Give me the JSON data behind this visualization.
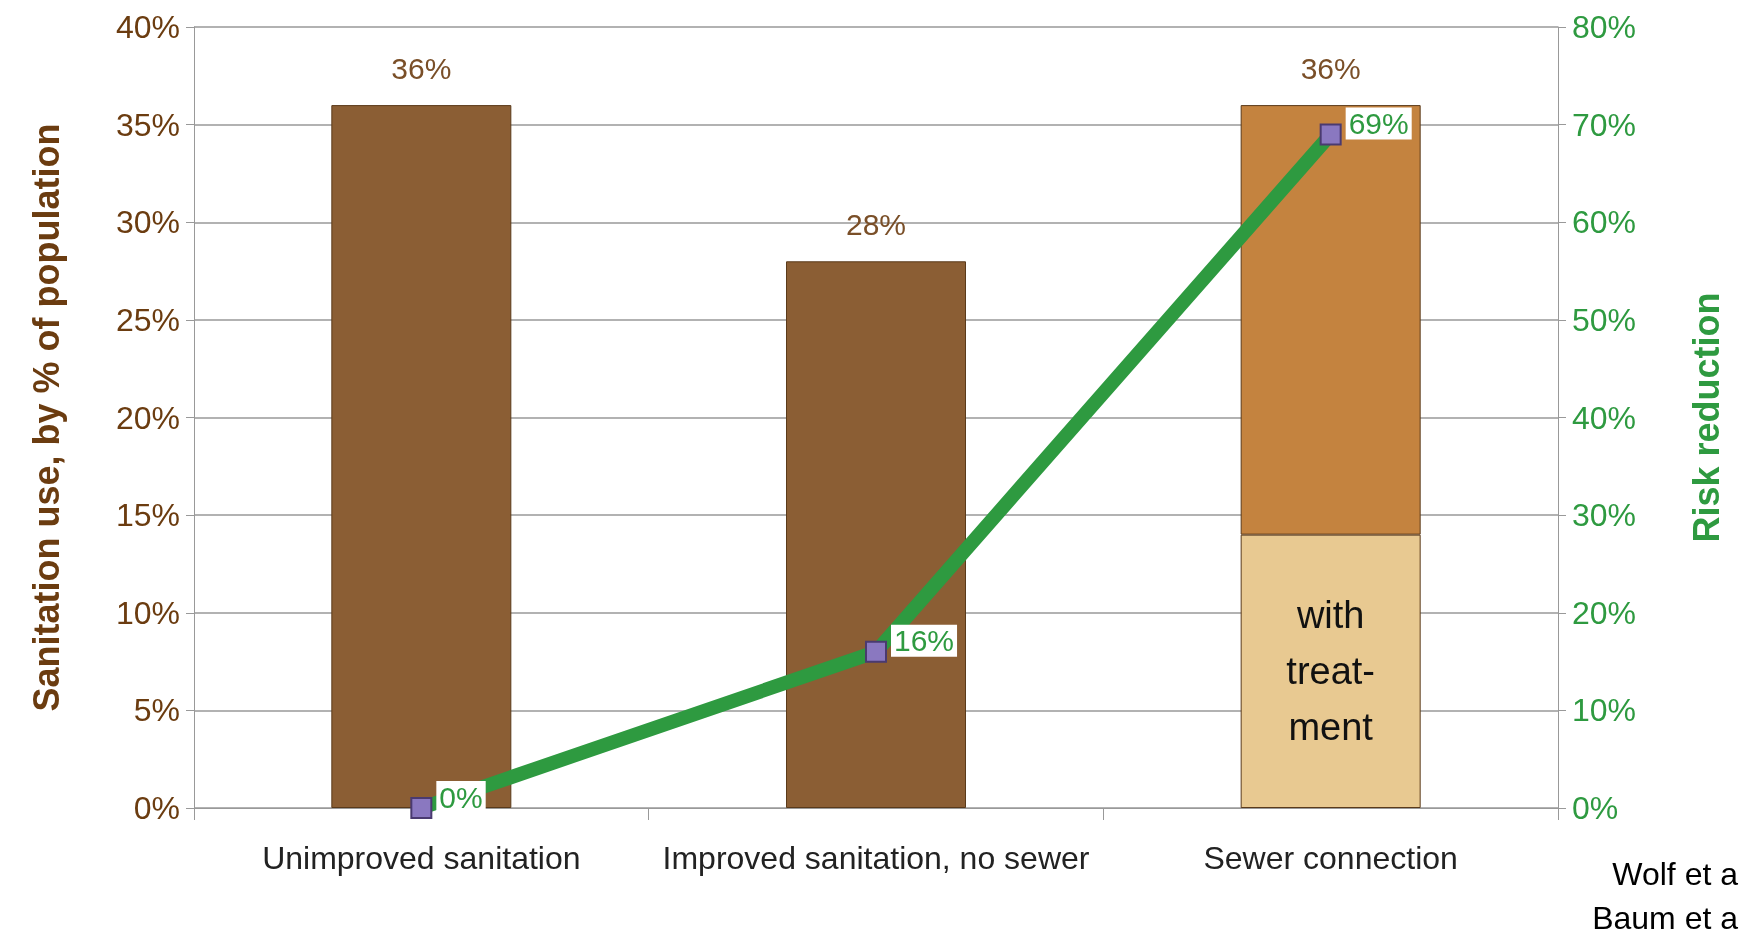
{
  "chart_data": {
    "type": "bar",
    "stacked": true,
    "categories": [
      "Unimproved sanitation",
      "Improved sanitation, no sewer",
      "Sewer connection"
    ],
    "series": [
      {
        "color": "#8b5e34",
        "values": [
          36,
          28,
          null
        ]
      },
      {
        "name": "with\ntreat-\nment",
        "color": "#e8c991",
        "values": [
          null,
          null,
          14
        ]
      },
      {
        "color": "#c4833f",
        "values": [
          null,
          null,
          22
        ]
      },
      {
        "type": "line",
        "axis": "y2",
        "color": "#2e9a40",
        "marker": "square",
        "values": [
          0,
          16,
          69
        ],
        "value_labels": [
          "0%",
          "16%",
          "69%"
        ]
      }
    ],
    "totals": [
      "36%",
      "28%",
      "36%"
    ],
    "ylabel": "Sanitation use, by % of population",
    "y2label": "Risk reduction",
    "ylim": [
      0,
      40
    ],
    "yticks": [
      {
        "value": 0,
        "label": "0%"
      },
      {
        "value": 5,
        "label": "5%"
      },
      {
        "value": 10,
        "label": "10%"
      },
      {
        "value": 15,
        "label": "15%"
      },
      {
        "value": 20,
        "label": "20%"
      },
      {
        "value": 25,
        "label": "25%"
      },
      {
        "value": 30,
        "label": "30%"
      },
      {
        "value": 35,
        "label": "35%"
      },
      {
        "value": 40,
        "label": "40%"
      }
    ],
    "y2lim": [
      0,
      80
    ],
    "y2ticks": [
      {
        "value": 0,
        "label": "0%"
      },
      {
        "value": 10,
        "label": "10%"
      },
      {
        "value": 20,
        "label": "20%"
      },
      {
        "value": 30,
        "label": "30%"
      },
      {
        "value": 40,
        "label": "40%"
      },
      {
        "value": 50,
        "label": "50%"
      },
      {
        "value": 60,
        "label": "60%"
      },
      {
        "value": 70,
        "label": "70%"
      },
      {
        "value": 80,
        "label": "80%"
      }
    ],
    "grid": "y",
    "legend": false,
    "annotations": [
      "Wolf et a",
      "Baum et a"
    ]
  }
}
